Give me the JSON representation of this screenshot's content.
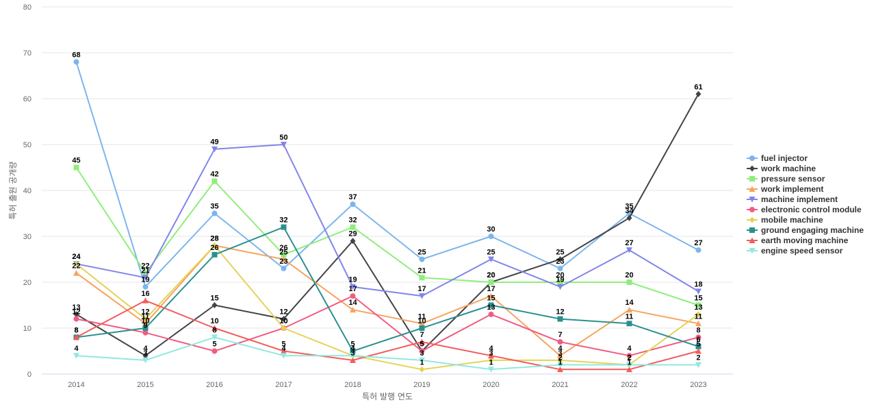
{
  "chart_data": {
    "type": "line",
    "title": "",
    "xlabel": "특허 발행 연도",
    "ylabel": "특허 출원 공개량",
    "x": [
      "2014",
      "2015",
      "2016",
      "2017",
      "2018",
      "2019",
      "2020",
      "2021",
      "2022",
      "2023"
    ],
    "ylim": [
      0,
      80
    ],
    "yticks": [
      0,
      10,
      20,
      30,
      40,
      50,
      60,
      70,
      80
    ],
    "grid": true,
    "legend_position": "right",
    "series": [
      {
        "name": "fuel injector",
        "color": "#7cb5ec",
        "marker": "circle",
        "values": [
          68,
          19,
          35,
          23,
          37,
          25,
          30,
          23,
          35,
          27
        ]
      },
      {
        "name": "work machine",
        "color": "#434348",
        "marker": "diamond",
        "values": [
          13,
          4,
          15,
          12,
          29,
          5,
          20,
          25,
          34,
          61
        ]
      },
      {
        "name": "pressure sensor",
        "color": "#90ed7d",
        "marker": "square",
        "values": [
          45,
          22,
          42,
          26,
          32,
          21,
          20,
          20,
          20,
          15
        ]
      },
      {
        "name": "work implement",
        "color": "#f7a35c",
        "marker": "triangle",
        "values": [
          22,
          11,
          28,
          25,
          14,
          11,
          17,
          4,
          14,
          11
        ]
      },
      {
        "name": "machine implement",
        "color": "#8085e9",
        "marker": "triangle-down",
        "values": [
          24,
          21,
          49,
          50,
          19,
          17,
          25,
          19,
          27,
          18
        ]
      },
      {
        "name": "electronic control module",
        "color": "#f15c80",
        "marker": "circle",
        "values": [
          12,
          9,
          5,
          10,
          17,
          5,
          13,
          7,
          4,
          8
        ]
      },
      {
        "name": "mobile machine",
        "color": "#e4d354",
        "marker": "diamond",
        "values": [
          24,
          12,
          28,
          10,
          4,
          1,
          3,
          3,
          2,
          13
        ]
      },
      {
        "name": "ground engaging machine",
        "color": "#2b908f",
        "marker": "square",
        "values": [
          8,
          10,
          26,
          32,
          5,
          10,
          15,
          12,
          11,
          6
        ]
      },
      {
        "name": "earth moving machine",
        "color": "#f45b5b",
        "marker": "triangle",
        "values": [
          8,
          16,
          10,
          5,
          3,
          7,
          4,
          1,
          1,
          5
        ]
      },
      {
        "name": "engine speed sensor",
        "color": "#91e8e1",
        "marker": "triangle-down",
        "values": [
          4,
          3,
          8,
          4,
          4,
          3,
          1,
          2,
          2,
          2
        ]
      }
    ]
  }
}
